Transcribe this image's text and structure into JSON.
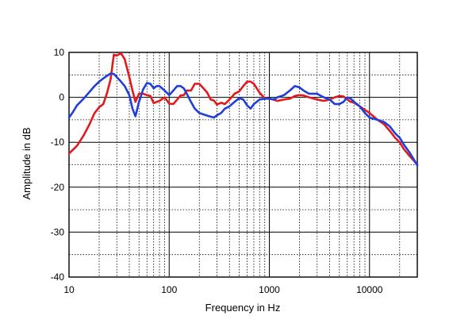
{
  "chart_data": {
    "type": "line",
    "title": "",
    "xlabel": "Frequency in Hz",
    "ylabel": "Amplitude in dB",
    "x_scale": "log",
    "xlim": [
      10,
      30000
    ],
    "ylim": [
      -40,
      10
    ],
    "grid": true,
    "x_ticks": [
      {
        "value": 10,
        "label": "10"
      },
      {
        "value": 100,
        "label": "100"
      },
      {
        "value": 1000,
        "label": "1000"
      },
      {
        "value": 10000,
        "label": "10000"
      }
    ],
    "y_ticks": [
      {
        "value": 10,
        "label": "10"
      },
      {
        "value": 0,
        "label": "0"
      },
      {
        "value": -10,
        "label": "-10"
      },
      {
        "value": -20,
        "label": "-20"
      },
      {
        "value": -30,
        "label": "-30"
      },
      {
        "value": -40,
        "label": "-40"
      }
    ],
    "series": [
      {
        "color": "#e31a1c",
        "x": [
          10,
          12,
          14,
          16,
          18,
          20,
          22,
          24,
          26,
          28,
          30,
          33,
          36,
          40,
          43,
          46,
          50,
          55,
          60,
          65,
          70,
          75,
          80,
          90,
          100,
          110,
          120,
          130,
          140,
          150,
          165,
          180,
          200,
          220,
          240,
          260,
          280,
          300,
          330,
          360,
          400,
          450,
          500,
          550,
          600,
          650,
          700,
          800,
          900,
          1000,
          1100,
          1200,
          1400,
          1600,
          1800,
          2000,
          2200,
          2500,
          3000,
          3500,
          4000,
          4500,
          5000,
          5500,
          6000,
          6500,
          7000,
          8000,
          9000,
          10000,
          12000,
          14000,
          16000,
          18000,
          20000,
          22000,
          25000,
          28000,
          30000
        ],
        "y": [
          -12.5,
          -10.8,
          -8.5,
          -6,
          -3.5,
          -2.2,
          -1.5,
          1,
          4,
          9.5,
          9.3,
          9.8,
          8.5,
          4.5,
          1.5,
          -1,
          0.8,
          0.8,
          0.5,
          0.3,
          -1.3,
          -1.0,
          -0.8,
          0,
          -1.4,
          -1.5,
          -0.5,
          0.4,
          0.5,
          1.5,
          1.5,
          3,
          3,
          2,
          1,
          -0.5,
          -0.7,
          -1.6,
          -1.2,
          -1.5,
          -0.5,
          0.8,
          1.3,
          2.5,
          3.5,
          3.5,
          3,
          1,
          -0.2,
          -0.3,
          -0.5,
          -0.8,
          -0.5,
          -0.3,
          0.3,
          0.5,
          0.4,
          0,
          -0.5,
          -0.8,
          -0.5,
          0,
          0.3,
          0.2,
          -0.5,
          -1,
          -1.2,
          -2,
          -2.8,
          -3.5,
          -5,
          -6,
          -7.5,
          -9,
          -10,
          -11.5,
          -13,
          -14.2,
          -15
        ]
      },
      {
        "color": "#1f3fdc",
        "x": [
          10,
          11,
          12,
          14,
          16,
          18,
          20,
          22,
          24,
          26,
          28,
          30,
          33,
          36,
          40,
          43,
          46,
          50,
          55,
          60,
          65,
          70,
          75,
          80,
          90,
          100,
          110,
          120,
          130,
          140,
          150,
          165,
          180,
          200,
          220,
          250,
          280,
          300,
          330,
          360,
          400,
          450,
          500,
          550,
          600,
          650,
          700,
          800,
          900,
          1000,
          1100,
          1200,
          1400,
          1600,
          1800,
          2000,
          2200,
          2500,
          3000,
          3500,
          4000,
          4500,
          5000,
          5500,
          6000,
          6500,
          7000,
          8000,
          9000,
          10000,
          12000,
          14000,
          16000,
          18000,
          20000,
          22000,
          25000,
          28000,
          30000
        ],
        "y": [
          -4.5,
          -3.2,
          -1.8,
          -0.3,
          1.2,
          2.5,
          3.5,
          4.2,
          4.8,
          5.3,
          5.2,
          4.5,
          3.5,
          2.5,
          0.5,
          -2.5,
          -4.2,
          -1,
          1.8,
          3.2,
          3.0,
          2.0,
          2.5,
          2.5,
          1.5,
          0.5,
          1.5,
          2.5,
          2.5,
          2.0,
          0.8,
          -1,
          -2.5,
          -3.5,
          -3.8,
          -4.2,
          -4.5,
          -4,
          -3.5,
          -2.5,
          -2,
          -1,
          -0.2,
          -0.5,
          -1.8,
          -2.5,
          -1.5,
          -0.5,
          -0.3,
          -0.3,
          -0.5,
          0,
          0.5,
          1.5,
          2.5,
          2.2,
          1.5,
          0.8,
          0.8,
          0,
          -0.5,
          -1.5,
          -1.5,
          -1,
          0,
          -0.3,
          -1,
          -2,
          -3.5,
          -4.5,
          -5,
          -5.5,
          -6.5,
          -8,
          -9,
          -10.5,
          -12.2,
          -14,
          -15.2
        ]
      }
    ]
  }
}
